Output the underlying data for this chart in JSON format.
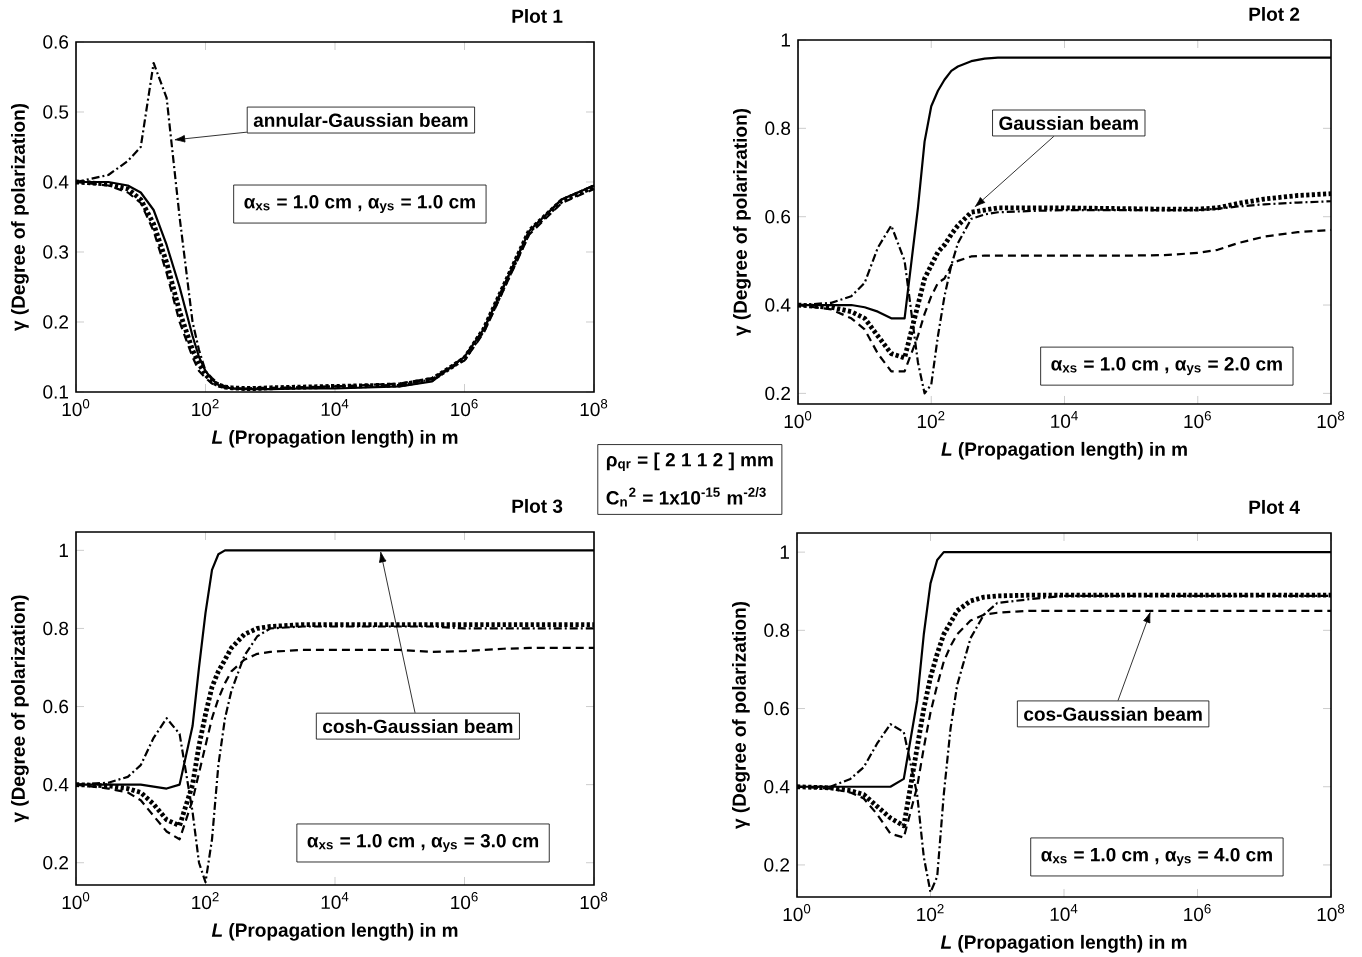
{
  "chart_data": [
    {
      "type": "line",
      "title": "Plot 1",
      "xlabel": "*L* (Propagation length) in m",
      "ylabel": "γ (Degree of polarization)",
      "log": "x",
      "xlim": [
        1,
        100000000
      ],
      "ylim": [
        0.1,
        0.6
      ],
      "xticks": [
        {
          "value": 1,
          "label": "10$^{0}$"
        },
        {
          "value": 100,
          "label": "10$^{2}$"
        },
        {
          "value": 10000,
          "label": "10$^{4}$"
        },
        {
          "value": 1000000,
          "label": "10$^{6}$"
        },
        {
          "value": 100000000,
          "label": "10$^{8}$"
        }
      ],
      "yticks": [
        0.1,
        0.2,
        0.3,
        0.4,
        0.5,
        0.6
      ],
      "x": [
        1,
        3.16,
        6.31,
        10,
        15.8,
        25.1,
        39.8,
        63.1,
        79.4,
        100,
        126,
        158,
        200,
        251,
        398,
        631,
        1000,
        3162,
        10000,
        100000,
        316228,
        1000000,
        1995262,
        3981072,
        10000000,
        31622777,
        100000000
      ],
      "series": [
        {
          "color": "#000000",
          "line_style": "solid",
          "values": [
            0.4,
            0.4,
            0.395,
            0.385,
            0.36,
            0.31,
            0.25,
            0.18,
            0.15,
            0.13,
            0.118,
            0.11,
            0.107,
            0.105,
            0.104,
            0.104,
            0.104,
            0.105,
            0.105,
            0.108,
            0.115,
            0.15,
            0.19,
            0.25,
            0.33,
            0.375,
            0.395
          ]
        },
        {
          "color": "#000000",
          "line_style": "dashed",
          "values": [
            0.4,
            0.395,
            0.385,
            0.37,
            0.33,
            0.27,
            0.2,
            0.15,
            0.13,
            0.12,
            0.112,
            0.108,
            0.106,
            0.105,
            0.105,
            0.106,
            0.106,
            0.107,
            0.108,
            0.112,
            0.12,
            0.145,
            0.185,
            0.245,
            0.325,
            0.37,
            0.39
          ]
        },
        {
          "color": "#000000",
          "line_style": "dotted",
          "values": [
            0.4,
            0.397,
            0.39,
            0.375,
            0.34,
            0.285,
            0.215,
            0.16,
            0.14,
            0.125,
            0.115,
            0.11,
            0.107,
            0.106,
            0.105,
            0.105,
            0.106,
            0.107,
            0.108,
            0.11,
            0.118,
            0.148,
            0.19,
            0.25,
            0.33,
            0.373,
            0.393
          ]
        },
        {
          "color": "#000000",
          "line_style": "dashdot",
          "values": [
            0.4,
            0.41,
            0.43,
            0.45,
            0.57,
            0.52,
            0.35,
            0.2,
            0.16,
            0.13,
            0.12,
            0.112,
            0.108,
            0.106,
            0.105,
            0.105,
            0.105,
            0.106,
            0.108,
            0.11,
            0.118,
            0.15,
            0.19,
            0.25,
            0.33,
            0.375,
            0.395
          ]
        }
      ],
      "annotations": [
        "α$_{xs}$ = 1.0 cm , α$_{ys}$ = 1.0 cm",
        "annular-Gaussian beam",
        "ρ$_{qr}$ = [ 2 1 1 2 ] mm",
        "C$_{n}$$^{2}$ = 1x10$^{-15}$ m$^{-2/3}$"
      ]
    },
    {
      "type": "line",
      "title": "Plot 2",
      "xlabel": "*L* (Propagation length) in m",
      "ylabel": "γ (Degree of polarization)",
      "log": "x",
      "xlim": [
        1,
        100000000
      ],
      "ylim": [
        0.176,
        1
      ],
      "xticks": [
        {
          "value": 1,
          "label": "10$^{0}$"
        },
        {
          "value": 100,
          "label": "10$^{2}$"
        },
        {
          "value": 10000,
          "label": "10$^{4}$"
        },
        {
          "value": 1000000,
          "label": "10$^{6}$"
        },
        {
          "value": 100000000,
          "label": "10$^{8}$"
        }
      ],
      "yticks": [
        0.2,
        0.4,
        0.6,
        0.8,
        1
      ],
      "x": [
        1,
        3.16,
        6.31,
        10,
        15.8,
        25.1,
        39.8,
        63.1,
        79.4,
        100,
        126,
        158,
        200,
        251,
        398,
        631,
        1000,
        3162,
        10000,
        100000,
        316228,
        1000000,
        1995262,
        3981072,
        10000000,
        31622777,
        100000000
      ],
      "series": [
        {
          "color": "#000000",
          "line_style": "solid",
          "values": [
            0.4,
            0.4,
            0.4,
            0.395,
            0.385,
            0.37,
            0.37,
            0.62,
            0.77,
            0.85,
            0.885,
            0.91,
            0.93,
            0.94,
            0.952,
            0.958,
            0.96,
            0.96,
            0.96,
            0.96,
            0.96,
            0.96,
            0.96,
            0.96,
            0.96,
            0.96,
            0.96
          ]
        },
        {
          "color": "#000000",
          "line_style": "dashed",
          "values": [
            0.4,
            0.39,
            0.37,
            0.345,
            0.29,
            0.25,
            0.25,
            0.33,
            0.38,
            0.42,
            0.45,
            0.46,
            0.49,
            0.5,
            0.51,
            0.512,
            0.512,
            0.512,
            0.512,
            0.512,
            0.513,
            0.518,
            0.525,
            0.54,
            0.555,
            0.565,
            0.57
          ]
        },
        {
          "color": "#000000",
          "line_style": "dotted",
          "values": [
            0.4,
            0.395,
            0.385,
            0.37,
            0.33,
            0.29,
            0.28,
            0.4,
            0.46,
            0.49,
            0.52,
            0.536,
            0.56,
            0.58,
            0.61,
            0.615,
            0.62,
            0.62,
            0.62,
            0.618,
            0.617,
            0.617,
            0.62,
            0.63,
            0.64,
            0.648,
            0.652
          ]
        },
        {
          "color": "#000000",
          "line_style": "dashdot",
          "values": [
            0.4,
            0.405,
            0.42,
            0.45,
            0.53,
            0.58,
            0.5,
            0.27,
            0.2,
            0.22,
            0.33,
            0.42,
            0.49,
            0.54,
            0.595,
            0.605,
            0.61,
            0.613,
            0.615,
            0.615,
            0.615,
            0.615,
            0.618,
            0.623,
            0.628,
            0.632,
            0.635
          ]
        }
      ],
      "annotations": [
        "α$_{xs}$ = 1.0 cm , α$_{ys}$ = 2.0 cm",
        "Gaussian beam"
      ]
    },
    {
      "type": "line",
      "title": "Plot 3",
      "xlabel": "*L* (Propagation length) in m",
      "ylabel": "γ (Degree of polarization)",
      "log": "x",
      "xlim": [
        1,
        100000000
      ],
      "ylim": [
        0.143,
        1.047
      ],
      "xticks": [
        {
          "value": 1,
          "label": "10$^{0}$"
        },
        {
          "value": 100,
          "label": "10$^{2}$"
        },
        {
          "value": 10000,
          "label": "10$^{4}$"
        },
        {
          "value": 1000000,
          "label": "10$^{6}$"
        },
        {
          "value": 100000000,
          "label": "10$^{8}$"
        }
      ],
      "yticks": [
        0.2,
        0.4,
        0.6,
        0.8,
        1
      ],
      "x": [
        1,
        3.16,
        6.31,
        10,
        15.8,
        25.1,
        39.8,
        63.1,
        79.4,
        100,
        126,
        158,
        200,
        251,
        398,
        631,
        1000,
        3162,
        10000,
        100000,
        316228,
        1000000,
        1995262,
        3981072,
        10000000,
        31622777,
        100000000
      ],
      "series": [
        {
          "color": "#000000",
          "line_style": "solid",
          "values": [
            0.4,
            0.4,
            0.4,
            0.4,
            0.395,
            0.39,
            0.4,
            0.55,
            0.7,
            0.84,
            0.95,
            0.99,
            1.0,
            1.0,
            1.0,
            1.0,
            1.0,
            1.0,
            1.0,
            1.0,
            1.0,
            1.0,
            1.0,
            1.0,
            1.0,
            1.0,
            1.0
          ]
        },
        {
          "color": "#000000",
          "line_style": "dashed",
          "values": [
            0.4,
            0.39,
            0.38,
            0.36,
            0.32,
            0.28,
            0.26,
            0.36,
            0.43,
            0.5,
            0.57,
            0.62,
            0.66,
            0.69,
            0.72,
            0.735,
            0.74,
            0.745,
            0.745,
            0.745,
            0.74,
            0.742,
            0.745,
            0.748,
            0.75,
            0.75,
            0.75
          ]
        },
        {
          "color": "#000000",
          "line_style": "dotted",
          "values": [
            0.4,
            0.397,
            0.39,
            0.38,
            0.35,
            0.31,
            0.295,
            0.4,
            0.5,
            0.58,
            0.65,
            0.69,
            0.72,
            0.75,
            0.785,
            0.8,
            0.805,
            0.81,
            0.81,
            0.81,
            0.81,
            0.81,
            0.81,
            0.81,
            0.81,
            0.81,
            0.81
          ]
        },
        {
          "color": "#000000",
          "line_style": "dashdot",
          "values": [
            0.4,
            0.405,
            0.42,
            0.45,
            0.52,
            0.57,
            0.53,
            0.33,
            0.2,
            0.15,
            0.26,
            0.45,
            0.57,
            0.64,
            0.73,
            0.78,
            0.8,
            0.805,
            0.805,
            0.805,
            0.805,
            0.8,
            0.8,
            0.8,
            0.8,
            0.8,
            0.8
          ]
        }
      ],
      "annotations": [
        "α$_{xs}$ = 1.0 cm , α$_{ys}$ = 3.0 cm",
        "cosh-Gaussian beam"
      ]
    },
    {
      "type": "line",
      "title": "Plot 4",
      "xlabel": "*L* (Propagation length) in m",
      "ylabel": "γ (Degree of polarization)",
      "log": "x",
      "xlim": [
        1,
        100000000
      ],
      "ylim": [
        0.118,
        1.049
      ],
      "xticks": [
        {
          "value": 1,
          "label": "10$^{0}$"
        },
        {
          "value": 100,
          "label": "10$^{2}$"
        },
        {
          "value": 10000,
          "label": "10$^{4}$"
        },
        {
          "value": 1000000,
          "label": "10$^{6}$"
        },
        {
          "value": 100000000,
          "label": "10$^{8}$"
        }
      ],
      "yticks": [
        0.2,
        0.4,
        0.6,
        0.8,
        1
      ],
      "x": [
        1,
        3.16,
        6.31,
        10,
        15.8,
        25.1,
        39.8,
        63.1,
        79.4,
        100,
        126,
        158,
        200,
        251,
        398,
        631,
        1000,
        3162,
        10000,
        100000,
        316228,
        1000000,
        1995262,
        3981072,
        10000000,
        31622777,
        100000000
      ],
      "series": [
        {
          "color": "#000000",
          "line_style": "solid",
          "values": [
            0.4,
            0.4,
            0.4,
            0.4,
            0.4,
            0.4,
            0.42,
            0.62,
            0.79,
            0.92,
            0.98,
            1.0,
            1.0,
            1.0,
            1.0,
            1.0,
            1.0,
            1.0,
            1.0,
            1.0,
            1.0,
            1.0,
            1.0,
            1.0,
            1.0,
            1.0,
            1.0
          ]
        },
        {
          "color": "#000000",
          "line_style": "dashed",
          "values": [
            0.4,
            0.395,
            0.385,
            0.37,
            0.33,
            0.28,
            0.27,
            0.4,
            0.5,
            0.59,
            0.66,
            0.72,
            0.76,
            0.79,
            0.825,
            0.84,
            0.845,
            0.85,
            0.85,
            0.85,
            0.85,
            0.85,
            0.85,
            0.85,
            0.85,
            0.85,
            0.85
          ]
        },
        {
          "color": "#000000",
          "line_style": "dotted",
          "values": [
            0.4,
            0.397,
            0.39,
            0.38,
            0.35,
            0.32,
            0.3,
            0.5,
            0.6,
            0.68,
            0.74,
            0.79,
            0.82,
            0.85,
            0.875,
            0.885,
            0.888,
            0.89,
            0.89,
            0.89,
            0.89,
            0.89,
            0.89,
            0.89,
            0.89,
            0.89,
            0.89
          ]
        },
        {
          "color": "#000000",
          "line_style": "dashdot",
          "values": [
            0.4,
            0.4,
            0.42,
            0.45,
            0.51,
            0.56,
            0.54,
            0.38,
            0.22,
            0.13,
            0.17,
            0.38,
            0.55,
            0.66,
            0.78,
            0.84,
            0.87,
            0.88,
            0.888,
            0.888,
            0.888,
            0.888,
            0.888,
            0.888,
            0.888,
            0.888,
            0.888
          ]
        }
      ],
      "annotations": [
        "α$_{xs}$ = 1.0 cm , α$_{ys}$ = 4.0 cm",
        "cos-Gaussian beam"
      ]
    }
  ]
}
